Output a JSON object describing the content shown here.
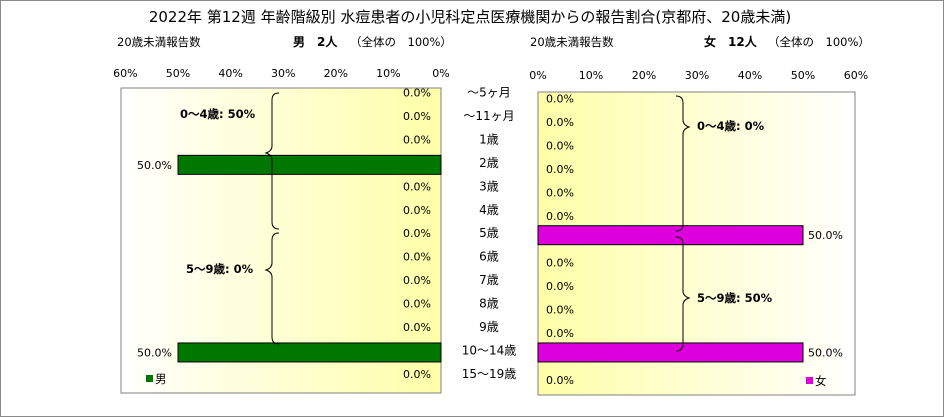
{
  "title": "2022年 第12週 年齢階級別 水痘患者の小児科定点医療機関からの報告割合(京都府、20歳未満)",
  "left_header": {
    "count_label": "20歳未満報告数",
    "sex_count": "男　2人",
    "total": "（全体の　100%）"
  },
  "right_header": {
    "count_label": "20歳未満報告数",
    "sex_count": "女　12人",
    "total": "（全体の　100%）"
  },
  "left_ticks": [
    "60%",
    "50%",
    "40%",
    "30%",
    "20%",
    "10%",
    "0%"
  ],
  "right_ticks": [
    "0%",
    "10%",
    "20%",
    "30%",
    "40%",
    "50%",
    "60%"
  ],
  "age_groups": [
    "～5ヶ月",
    "～11ヶ月",
    "1歳",
    "2歳",
    "3歳",
    "4歳",
    "5歳",
    "6歳",
    "7歳",
    "8歳",
    "9歳",
    "10～14歳",
    "15～19歳"
  ],
  "male_labels": [
    "0.0%",
    "0.0%",
    "0.0%",
    "50.0%",
    "0.0%",
    "0.0%",
    "0.0%",
    "0.0%",
    "0.0%",
    "0.0%",
    "0.0%",
    "50.0%",
    "0.0%"
  ],
  "female_labels": [
    "0.0%",
    "0.0%",
    "0.0%",
    "0.0%",
    "0.0%",
    "0.0%",
    "50.0%",
    "0.0%",
    "0.0%",
    "0.0%",
    "0.0%",
    "50.0%",
    "0.0%"
  ],
  "groups": {
    "male_0_4": "0～4歳: 50%",
    "male_5_9": "5～9歳: 0%",
    "female_0_4": "0～4歳: 0%",
    "female_5_9": "5～9歳: 50%"
  },
  "legend": {
    "male": "男",
    "female": "女"
  },
  "colors": {
    "male": "#007800",
    "female": "#dd00dd",
    "panel_bg_left": "#ffffa8",
    "panel_bg_right": "#ffffa8"
  },
  "chart_data": [
    {
      "type": "bar",
      "title": "男　2人",
      "categories": [
        "～5ヶ月",
        "～11ヶ月",
        "1歳",
        "2歳",
        "3歳",
        "4歳",
        "5歳",
        "6歳",
        "7歳",
        "8歳",
        "9歳",
        "10～14歳",
        "15～19歳"
      ],
      "values": [
        0,
        0,
        0,
        50,
        0,
        0,
        0,
        0,
        0,
        0,
        0,
        50,
        0
      ],
      "xlim": [
        0,
        60
      ],
      "x_reversed": true,
      "unit": "%",
      "series": [
        {
          "name": "男",
          "values": [
            0,
            0,
            0,
            50,
            0,
            0,
            0,
            0,
            0,
            0,
            0,
            50,
            0
          ]
        }
      ],
      "grid": false,
      "legend": "bottom-left"
    },
    {
      "type": "bar",
      "title": "女　12人",
      "categories": [
        "～5ヶ月",
        "～11ヶ月",
        "1歳",
        "2歳",
        "3歳",
        "4歳",
        "5歳",
        "6歳",
        "7歳",
        "8歳",
        "9歳",
        "10～14歳",
        "15～19歳"
      ],
      "values": [
        0,
        0,
        0,
        0,
        0,
        0,
        50,
        0,
        0,
        0,
        0,
        50,
        0
      ],
      "xlim": [
        0,
        60
      ],
      "unit": "%",
      "series": [
        {
          "name": "女",
          "values": [
            0,
            0,
            0,
            0,
            0,
            0,
            50,
            0,
            0,
            0,
            0,
            50,
            0
          ]
        }
      ],
      "grid": false,
      "legend": "bottom-right"
    }
  ]
}
